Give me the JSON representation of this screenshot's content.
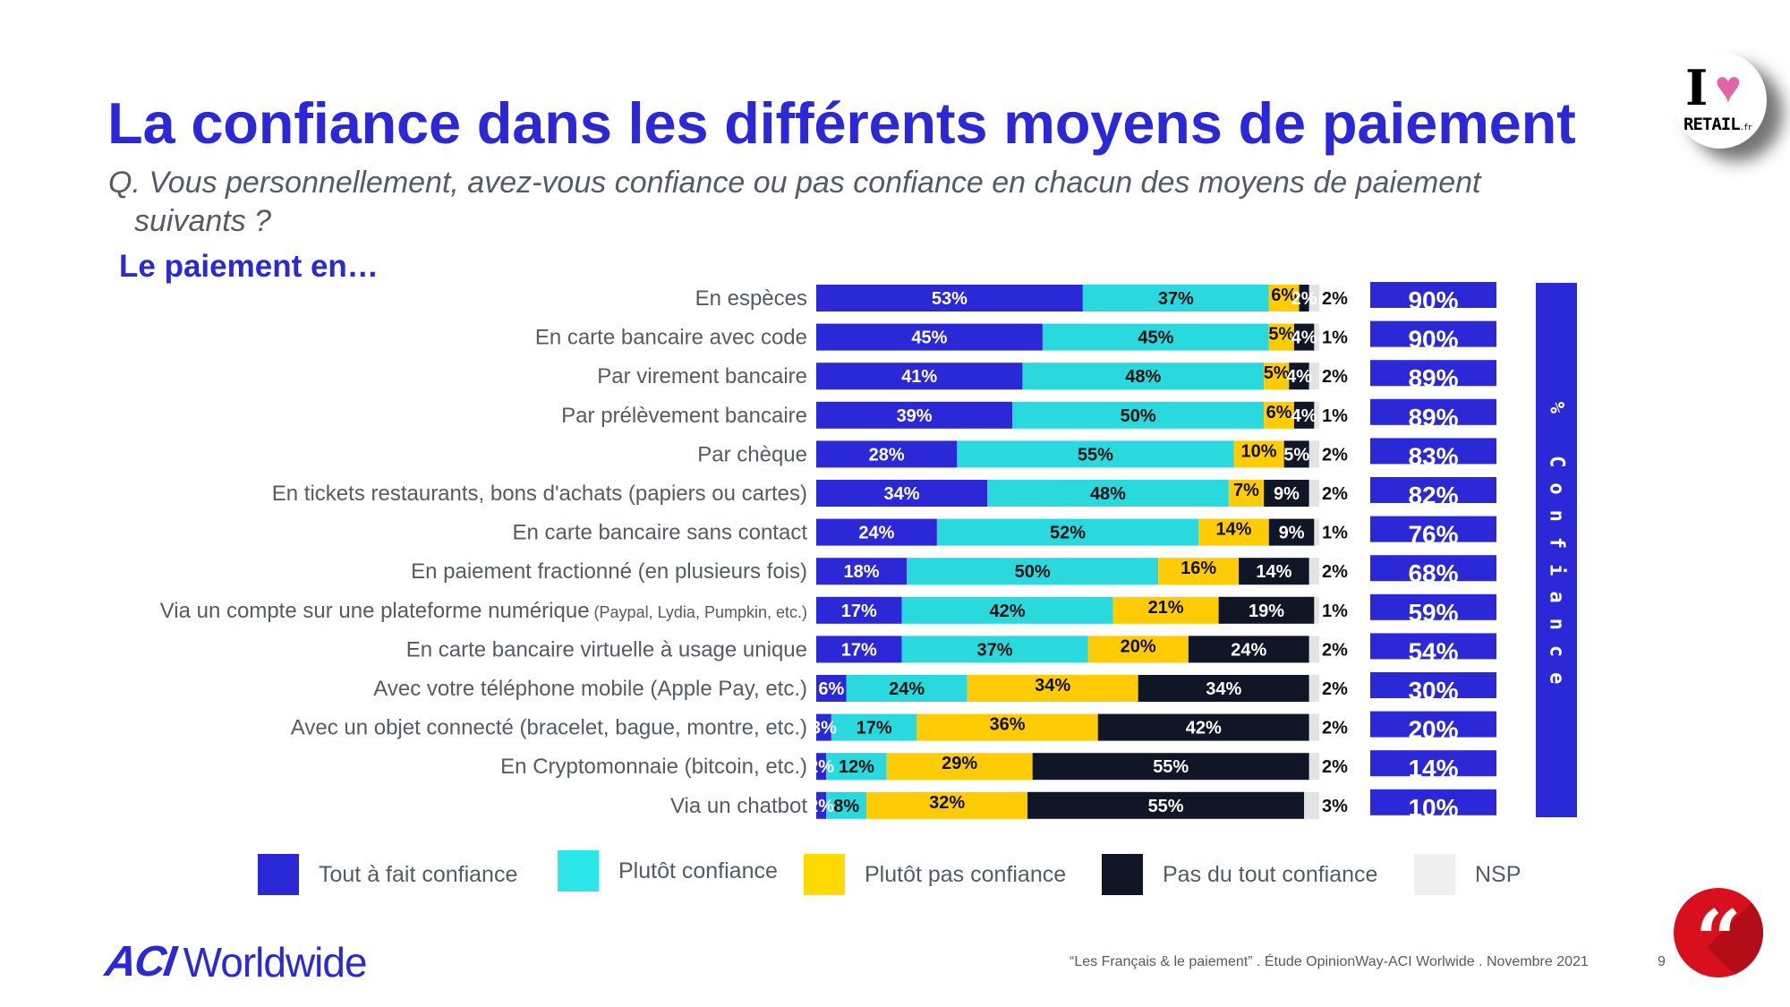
{
  "slide": {
    "title": "La confiance dans les différents moyens de paiement",
    "question_line1": "Q. Vous personnellement, avez-vous confiance ou pas confiance en chacun des moyens de paiement",
    "question_line2": "suivants ?",
    "section_label": "Le paiement en…",
    "confidence_column_label": "% Confiance",
    "footer_source": "“Les Français & le paiement” . Étude OpinionWay-ACI Worlwide . Novembre 2021",
    "page_number": "9",
    "brand_mark": "ACI",
    "brand_word": "Worldwide",
    "partner_logo_i": "I",
    "partner_logo_heart": "♥",
    "partner_logo_word": "RETAIL",
    "partner_logo_suffix": ".fr",
    "quote_icon_glyph": "“"
  },
  "colors": {
    "title": "#2B28D8",
    "text_gray": "#555A64",
    "quote_badge": "#D8101E"
  },
  "chart_data": {
    "type": "bar",
    "orientation": "horizontal",
    "stacked": true,
    "normalized_percent": true,
    "title": "La confiance dans les différents moyens de paiement",
    "xlabel": "",
    "ylabel": "Le paiement en…",
    "xlim": [
      0,
      100
    ],
    "grid": false,
    "legend_position": "bottom",
    "categories": [
      {
        "main": "En espèces",
        "sub": ""
      },
      {
        "main": "En carte bancaire avec code",
        "sub": ""
      },
      {
        "main": "Par virement bancaire",
        "sub": ""
      },
      {
        "main": "Par prélèvement bancaire",
        "sub": ""
      },
      {
        "main": "Par chèque",
        "sub": ""
      },
      {
        "main": "En tickets restaurants, bons d'achats (papiers ou cartes)",
        "sub": ""
      },
      {
        "main": "En carte bancaire sans contact",
        "sub": ""
      },
      {
        "main": "En paiement fractionné (en plusieurs fois)",
        "sub": ""
      },
      {
        "main": "Via un compte sur une plateforme numérique",
        "sub": "(Paypal, Lydia, Pumpkin, etc.)"
      },
      {
        "main": "En carte bancaire virtuelle à usage unique",
        "sub": ""
      },
      {
        "main": "Avec votre téléphone mobile (Apple Pay, etc.)",
        "sub": ""
      },
      {
        "main": "Avec un objet connecté (bracelet, bague, montre, etc.)",
        "sub": ""
      },
      {
        "main": "En Cryptomonnaie (bitcoin, etc.)",
        "sub": ""
      },
      {
        "main": "Via un chatbot",
        "sub": ""
      }
    ],
    "series": [
      {
        "name": "Tout à fait confiance",
        "color": "#2B28D8",
        "label_color": "#FFFFFF",
        "values": [
          53,
          45,
          41,
          39,
          28,
          34,
          24,
          18,
          17,
          17,
          6,
          3,
          2,
          2
        ]
      },
      {
        "name": "Plutôt confiance",
        "color": "#29D9DE",
        "label_color": "#111111",
        "values": [
          37,
          45,
          48,
          50,
          55,
          48,
          52,
          50,
          42,
          37,
          24,
          17,
          12,
          8
        ]
      },
      {
        "name": "Plutôt pas confiance",
        "color": "#FFCB05",
        "label_color": "#111111",
        "values": [
          6,
          5,
          5,
          6,
          10,
          7,
          14,
          16,
          21,
          20,
          34,
          36,
          29,
          32
        ]
      },
      {
        "name": "Pas du tout confiance",
        "color": "#111626",
        "label_color": "#FFFFFF",
        "values": [
          2,
          4,
          4,
          4,
          5,
          9,
          9,
          14,
          19,
          24,
          34,
          42,
          55,
          55
        ]
      },
      {
        "name": "NSP",
        "color": "#E3E3E3",
        "label_color": "#111111",
        "values": [
          2,
          1,
          2,
          1,
          2,
          2,
          1,
          2,
          1,
          2,
          2,
          2,
          2,
          3
        ]
      }
    ],
    "confidence_total": {
      "label": "% Confiance",
      "color": "#2B28D8",
      "values": [
        90,
        90,
        89,
        89,
        83,
        82,
        76,
        68,
        59,
        54,
        30,
        20,
        14,
        10
      ]
    }
  }
}
